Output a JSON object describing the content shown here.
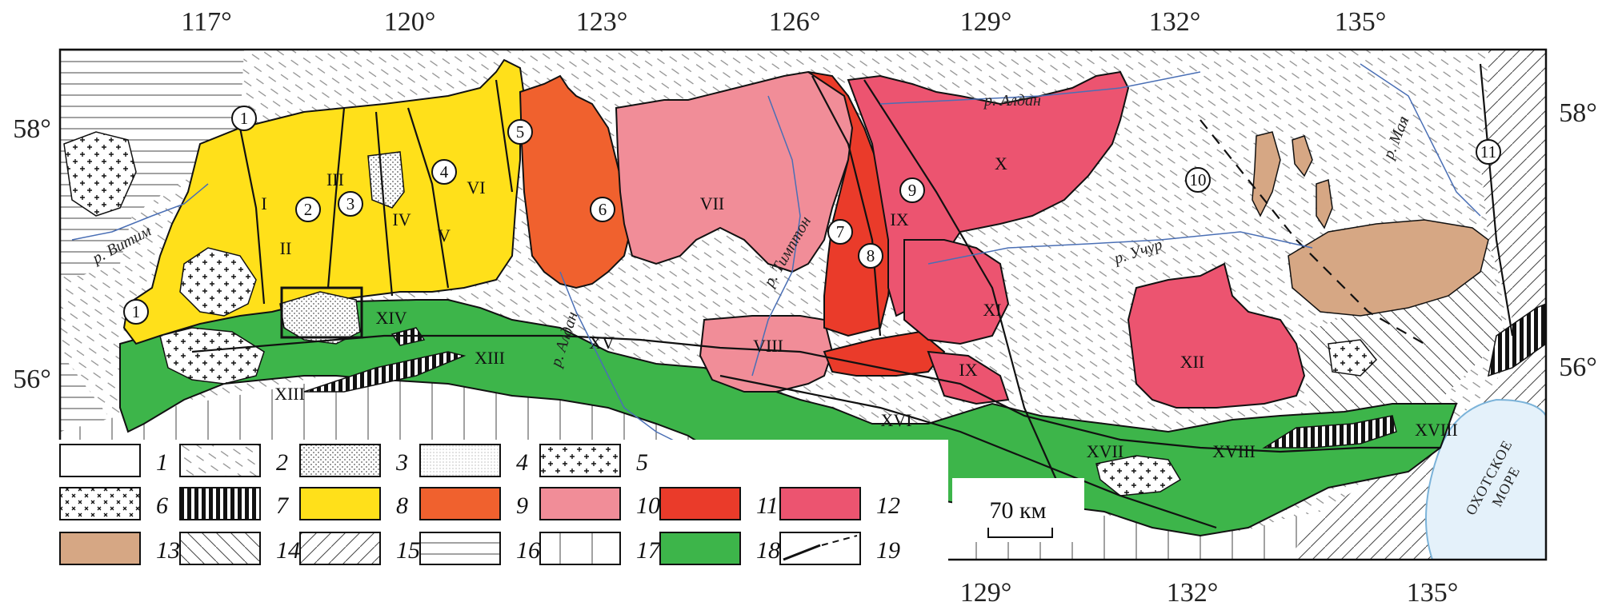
{
  "map": {
    "lon_ticks_top": [
      "117°",
      "120°",
      "123°",
      "126°",
      "129°",
      "132°",
      "135°"
    ],
    "lon_ticks_bottom": [
      "129°",
      "132°",
      "135°"
    ],
    "lat_ticks_left": [
      "58°",
      "56°"
    ],
    "lat_ticks_right": [
      "58°",
      "56°"
    ],
    "rivers": [
      "р. Витим",
      "р. Алдан",
      "р. Тимптон",
      "р. Алдан",
      "р. Учур",
      "р. Мая"
    ],
    "sea_label_line1": "ОХОТСКОЕ",
    "sea_label_line2": "МОРЕ",
    "scale_label": "70 км",
    "roman_labels": [
      "I",
      "II",
      "III",
      "IV",
      "V",
      "VI",
      "VII",
      "VIII",
      "IX",
      "IX",
      "X",
      "XI",
      "XII",
      "XIII",
      "XIII",
      "XIV",
      "XV",
      "XVI",
      "XVII",
      "XVIII",
      "XVIII"
    ],
    "circled_labels": [
      "1",
      "1",
      "2",
      "3",
      "4",
      "5",
      "6",
      "7",
      "8",
      "9",
      "10",
      "11"
    ]
  },
  "legend": {
    "items": [
      {
        "num": "1",
        "fill": "#ffffff"
      },
      {
        "num": "2",
        "fill": "pat-dash"
      },
      {
        "num": "3",
        "fill": "pat-dots"
      },
      {
        "num": "4",
        "fill": "pat-fine"
      },
      {
        "num": "5",
        "fill": "pat-plus"
      },
      {
        "num": "6",
        "fill": "pat-cross"
      },
      {
        "num": "7",
        "fill": "pat-bars"
      },
      {
        "num": "8",
        "fill": "#FFE01A"
      },
      {
        "num": "9",
        "fill": "#F0612E"
      },
      {
        "num": "10",
        "fill": "#F18D98"
      },
      {
        "num": "11",
        "fill": "#EA3B2A"
      },
      {
        "num": "12",
        "fill": "#EC5470"
      },
      {
        "num": "13",
        "fill": "#D6A784"
      },
      {
        "num": "14",
        "fill": "pat-diag-back"
      },
      {
        "num": "15",
        "fill": "pat-diag-fwd"
      },
      {
        "num": "16",
        "fill": "pat-horiz"
      },
      {
        "num": "17",
        "fill": "pat-vert"
      },
      {
        "num": "18",
        "fill": "#3DB54A"
      },
      {
        "num": "19",
        "fill": "lines"
      }
    ]
  },
  "colors": {
    "yellow": "#FFE01A",
    "orange": "#F0612E",
    "pink": "#F18D98",
    "red": "#EA3B2A",
    "rose": "#EC5470",
    "tan": "#D6A784",
    "green": "#3DB54A",
    "river": "#4A6FB5"
  }
}
